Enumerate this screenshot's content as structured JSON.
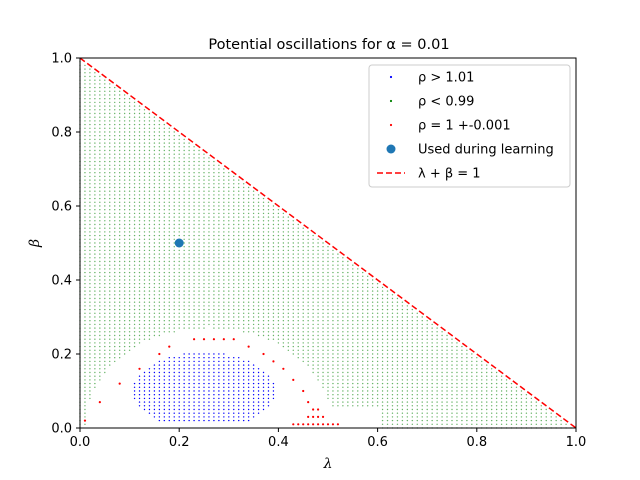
{
  "chart_data": {
    "type": "scatter",
    "title": "Potential oscillations for α = 0.01",
    "xlabel": "λ",
    "ylabel": "β",
    "xlim": [
      0,
      1
    ],
    "ylim": [
      0,
      1
    ],
    "xticks": [
      "0.0",
      "0.2",
      "0.4",
      "0.6",
      "0.8",
      "1.0"
    ],
    "yticks": [
      "0.0",
      "0.2",
      "0.4",
      "0.6",
      "0.8",
      "1.0"
    ],
    "grid": false,
    "legend_placement": "top-right",
    "series": [
      {
        "name": "ρ > 1.01",
        "color": "#0000ff",
        "marker": "dot",
        "region": "blue lobe centered near (0.25, 0.10) spanning λ 0.05–0.40, β 0.02–0.21"
      },
      {
        "name": "ρ < 0.99",
        "color": "#008000",
        "marker": "dot",
        "region": "grid points with λ + β < 1 outside the central band around the blue lobe"
      },
      {
        "name": "ρ = 1 +-0.001",
        "color": "#ff0000",
        "marker": "dot",
        "points": [
          [
            0.01,
            0.02
          ],
          [
            0.04,
            0.07
          ],
          [
            0.08,
            0.12
          ],
          [
            0.12,
            0.16
          ],
          [
            0.16,
            0.2
          ],
          [
            0.18,
            0.22
          ],
          [
            0.23,
            0.24
          ],
          [
            0.25,
            0.24
          ],
          [
            0.27,
            0.24
          ],
          [
            0.29,
            0.24
          ],
          [
            0.31,
            0.24
          ],
          [
            0.34,
            0.22
          ],
          [
            0.37,
            0.2
          ],
          [
            0.39,
            0.18
          ],
          [
            0.41,
            0.16
          ],
          [
            0.43,
            0.13
          ],
          [
            0.45,
            0.1
          ],
          [
            0.46,
            0.07
          ],
          [
            0.47,
            0.05
          ],
          [
            0.47,
            0.03
          ],
          [
            0.47,
            0.01
          ],
          [
            0.43,
            0.01
          ],
          [
            0.44,
            0.01
          ],
          [
            0.45,
            0.01
          ],
          [
            0.46,
            0.01
          ],
          [
            0.48,
            0.01
          ],
          [
            0.49,
            0.01
          ],
          [
            0.5,
            0.01
          ],
          [
            0.51,
            0.01
          ],
          [
            0.52,
            0.01
          ],
          [
            0.48,
            0.03
          ],
          [
            0.48,
            0.05
          ],
          [
            0.49,
            0.03
          ],
          [
            0.46,
            0.03
          ]
        ]
      },
      {
        "name": "Used during learning",
        "color": "#1f77b4",
        "marker": "circle",
        "points": [
          [
            0.2,
            0.5
          ]
        ]
      },
      {
        "name": "λ + β = 1",
        "color": "#ff0000",
        "style": "dashed",
        "points": [
          [
            0,
            1
          ],
          [
            1,
            0
          ]
        ]
      }
    ]
  }
}
